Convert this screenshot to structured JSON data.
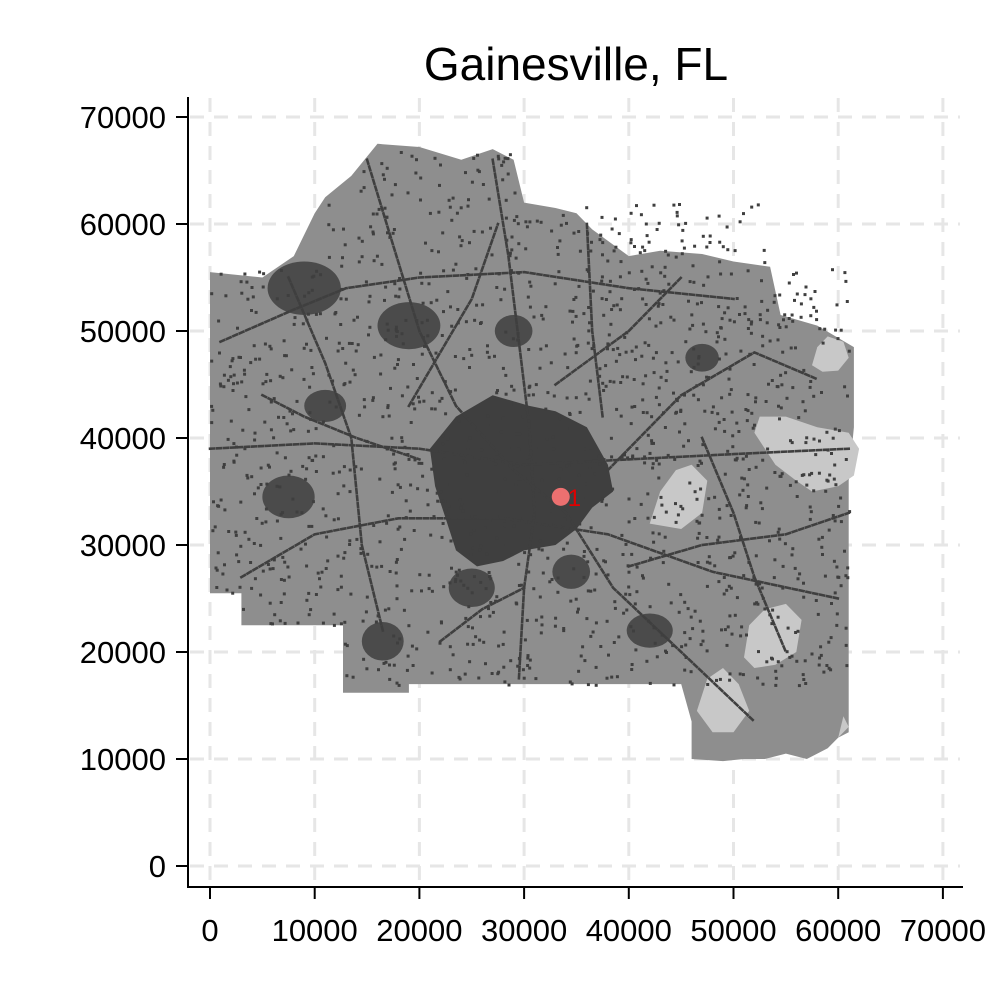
{
  "title": "Gainesville, FL",
  "map": {
    "x_range": [
      0,
      70000
    ],
    "y_range": [
      0,
      70000
    ],
    "grid": true,
    "x_ticks": [
      0,
      10000,
      20000,
      30000,
      40000,
      50000,
      60000,
      70000
    ],
    "y_ticks": [
      0,
      10000,
      20000,
      30000,
      40000,
      50000,
      60000,
      70000
    ],
    "colors": {
      "background": "#ffffff",
      "grid": "#e6e6e6",
      "land": "#8e8e8e",
      "urban": "#3f3f3f",
      "water": "#c8c8c8",
      "marker": "#ff7575",
      "marker_label": "#e00000"
    },
    "marker": {
      "label": "1",
      "x": 33500,
      "y": 34500
    }
  }
}
